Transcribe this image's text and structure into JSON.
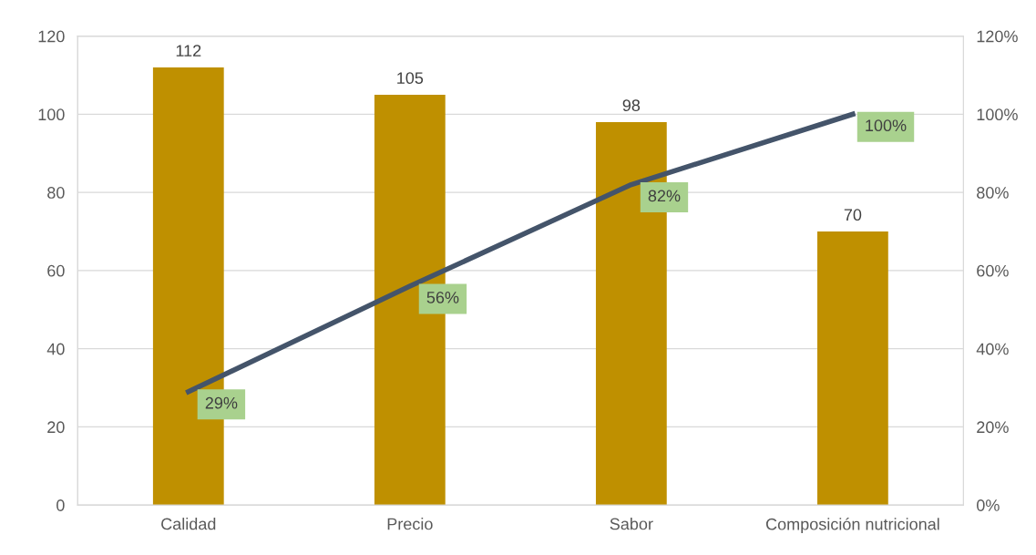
{
  "chart_data": {
    "type": "bar",
    "categories": [
      "Calidad",
      "Precio",
      "Sabor",
      "Composición nutricional"
    ],
    "series": [
      {
        "color": "#bf9000",
        "values": [
          112,
          105,
          98,
          70
        ],
        "data_labels": true
      },
      {
        "type": "line",
        "axis": "y2",
        "color": "#44546a",
        "values": [
          29,
          56,
          82,
          100
        ],
        "value_labels": [
          "29%",
          "56%",
          "82%",
          "100%"
        ]
      }
    ],
    "ylim": [
      0,
      120
    ],
    "yticks": [
      0,
      20,
      40,
      60,
      80,
      100,
      120
    ],
    "y2lim": [
      0,
      120
    ],
    "y2ticks": [
      {
        "value": 0,
        "label": "0%"
      },
      {
        "value": 20,
        "label": "20%"
      },
      {
        "value": 40,
        "label": "40%"
      },
      {
        "value": 60,
        "label": "60%"
      },
      {
        "value": 80,
        "label": "80%"
      },
      {
        "value": 100,
        "label": "100%"
      },
      {
        "value": 120,
        "label": "120%"
      }
    ],
    "grid": "y",
    "legend": false,
    "marker": "none",
    "line_style": "solid"
  }
}
